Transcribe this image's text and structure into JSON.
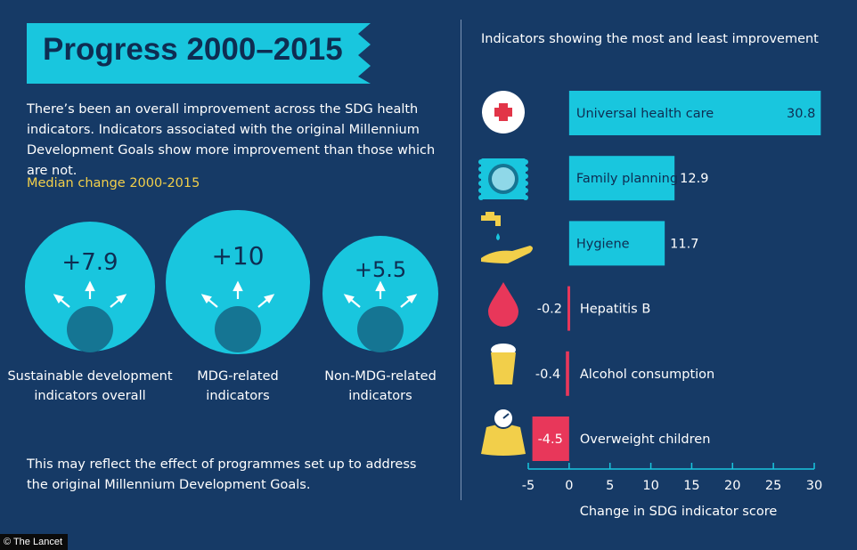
{
  "title": "Progress 2000–2015",
  "intro": "There’s been an overall improvement across the SDG health indicators. Indicators associated with the original Millennium Development Goals show more improvement than those which are not.",
  "median_label": "Median change 2000-2015",
  "bubbles": [
    {
      "value": "+7.9",
      "label_line1": "Sustainable development",
      "label_line2": "indicators overall"
    },
    {
      "value": "+10",
      "label_line1": "MDG-related",
      "label_line2": "indicators"
    },
    {
      "value": "+5.5",
      "label_line1": "Non-MDG-related",
      "label_line2": "indicators"
    }
  ],
  "outro": "This may reflect the effect of programmes set up to address the original Millennium Development Goals.",
  "right_heading": "Indicators showing the most and least improvement",
  "source": "© The Lancet",
  "colors": {
    "background": "#163a66",
    "cyan": "#19c6de",
    "dark_navy": "#0e2d52",
    "teal_dark": "#157593",
    "negative": "#e8375a",
    "yellow": "#f2cf4a",
    "red_cross": "#e23548"
  },
  "chart_data": {
    "type": "bar",
    "orientation": "horizontal",
    "title": "Indicators showing the most and least improvement",
    "xlabel": "Change in SDG indicator score",
    "xlim": [
      -5,
      30
    ],
    "xticks": [
      -5,
      0,
      5,
      10,
      15,
      20,
      25,
      30
    ],
    "categories": [
      "Universal health care",
      "Family planning",
      "Hygiene",
      "Hepatitis B",
      "Alcohol consumption",
      "Overweight children"
    ],
    "values": [
      30.8,
      12.9,
      11.7,
      -0.2,
      -0.4,
      -4.5
    ],
    "value_labels": [
      "30.8",
      "12.9",
      "11.7",
      "-0.2",
      "-0.4",
      "-4.5"
    ],
    "icons": [
      "red-cross-icon",
      "contraceptive-icon",
      "tap-hand-icon",
      "blood-drop-icon",
      "beer-glass-icon",
      "scale-icon"
    ]
  }
}
